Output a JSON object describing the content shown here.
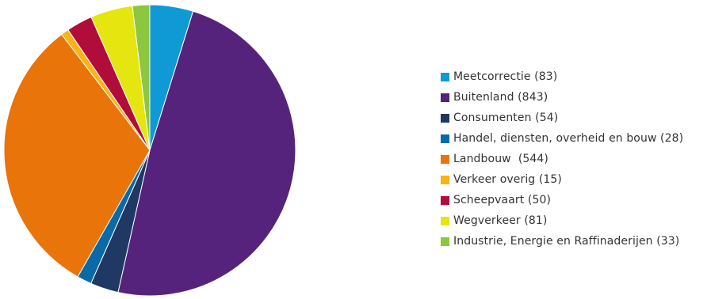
{
  "chart_data": {
    "type": "pie",
    "title": "",
    "legend_position": "right",
    "slices": [
      {
        "label": "Meetcorrectie (83)",
        "value": 83,
        "color": "#0f9ad6"
      },
      {
        "label": "Buitenland (843)",
        "value": 843,
        "color": "#55237b"
      },
      {
        "label": "Consumenten (54)",
        "value": 54,
        "color": "#1f3864"
      },
      {
        "label": "Handel, diensten, overheid en bouw (28)",
        "value": 28,
        "color": "#0a6aa8"
      },
      {
        "label": "Landbouw  (544)",
        "value": 544,
        "color": "#e8740a"
      },
      {
        "label": "Verkeer overig (15)",
        "value": 15,
        "color": "#fbb414"
      },
      {
        "label": "Scheepvaart (50)",
        "value": 50,
        "color": "#b10d3a"
      },
      {
        "label": "Wegverkeer (81)",
        "value": 81,
        "color": "#e5e60f"
      },
      {
        "label": "Industrie, Energie en Raffinaderijen (33)",
        "value": 33,
        "color": "#8dc63f"
      }
    ]
  }
}
